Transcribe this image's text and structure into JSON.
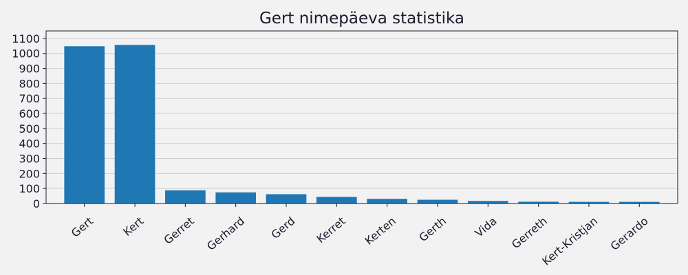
{
  "chart_data": {
    "type": "bar",
    "title": "Gert nimepäeva statistika",
    "xlabel": "",
    "ylabel": "",
    "categories": [
      "Gert",
      "Kert",
      "Gerret",
      "Gerhard",
      "Gerd",
      "Kerret",
      "Kerten",
      "Gerth",
      "Vida",
      "Gerreth",
      "Kert-Kristjan",
      "Gerardo"
    ],
    "values": [
      1048,
      1057,
      88,
      74,
      62,
      44,
      31,
      25,
      17,
      12,
      11,
      11
    ],
    "ylim": [
      0,
      1150
    ],
    "yticks": [
      0,
      100,
      200,
      300,
      400,
      500,
      600,
      700,
      800,
      900,
      1000,
      1100
    ],
    "grid": "y",
    "colors": {
      "bar": "#1f77b4",
      "background": "#f2f2f2",
      "axes": "#1a1a2e",
      "grid": "#d0d0d0"
    }
  }
}
